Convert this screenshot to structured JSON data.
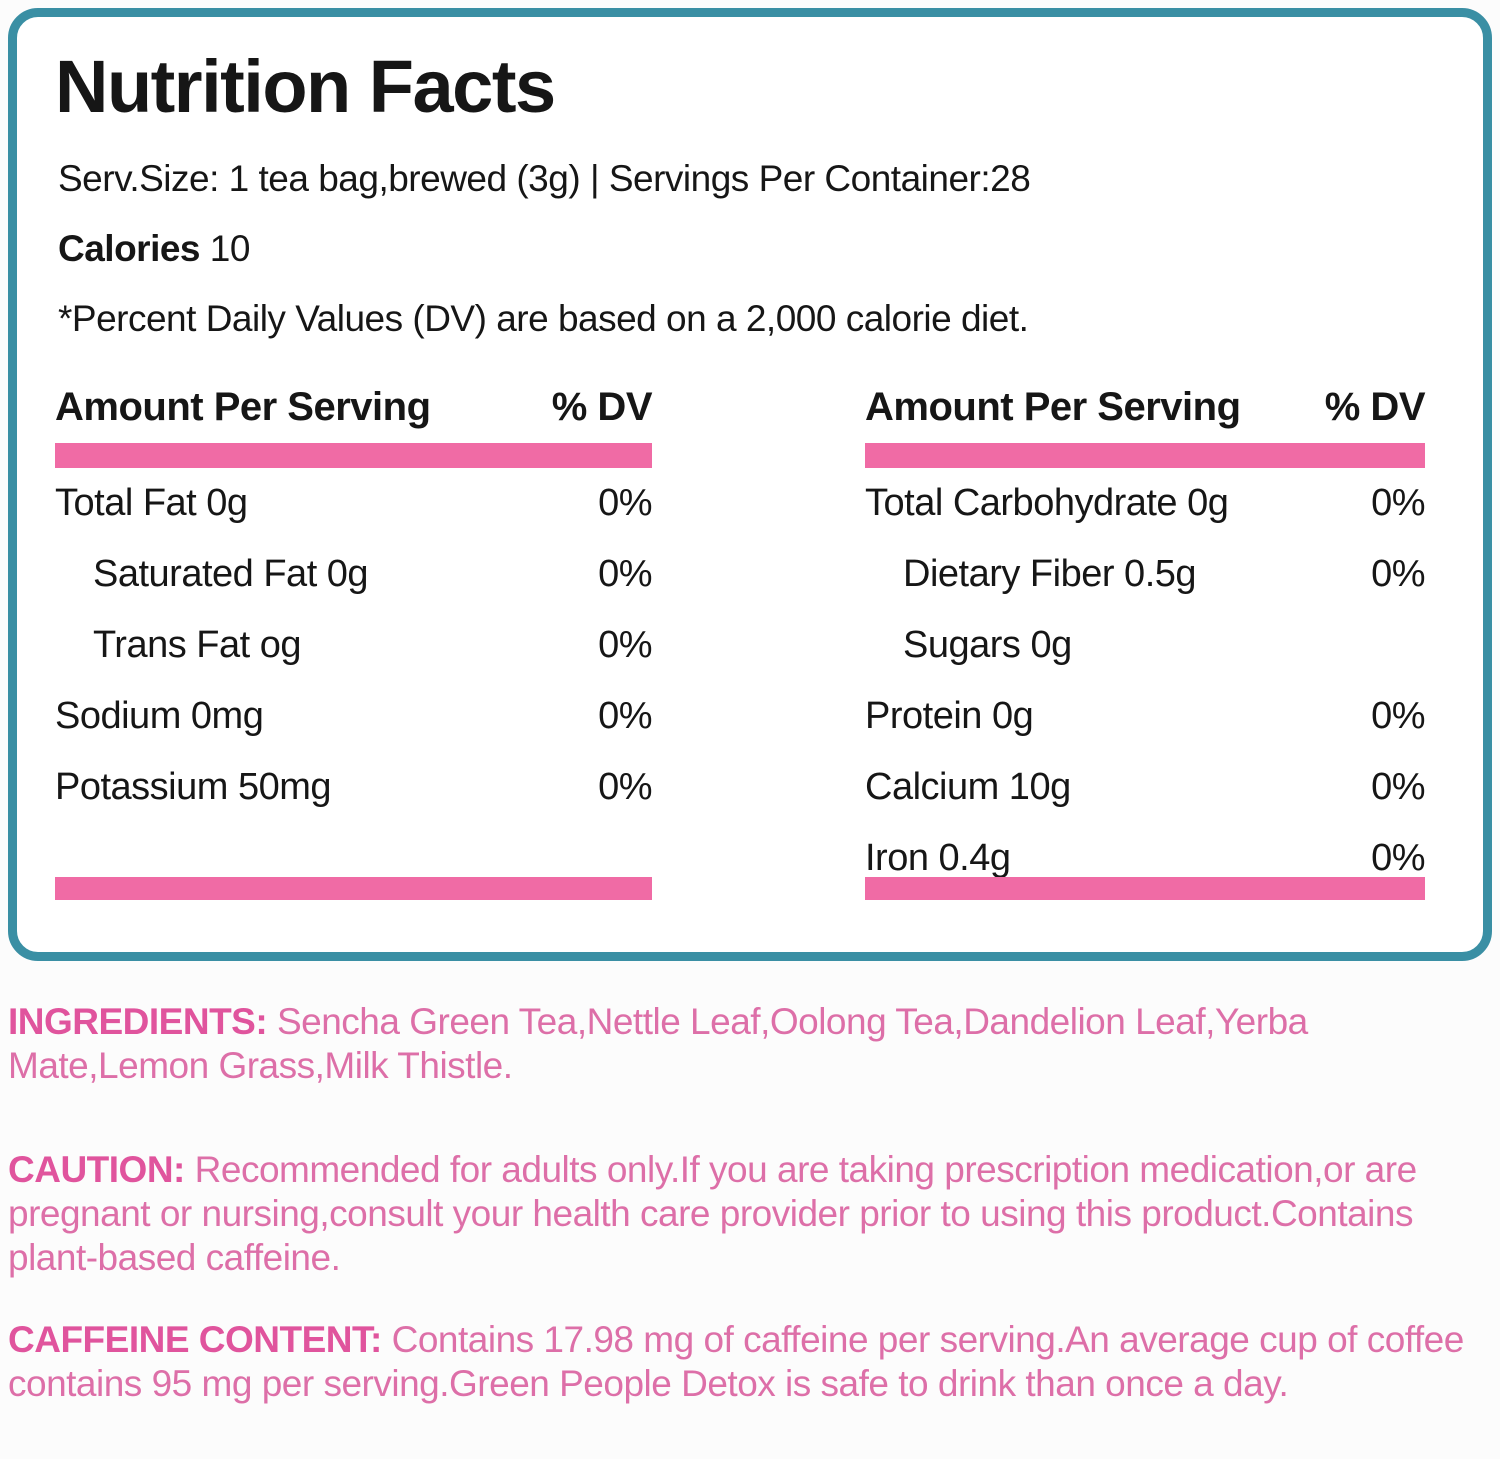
{
  "label": {
    "title": "Nutrition Facts",
    "serving_line": "Serv.Size: 1 tea bag,brewed (3g) | Servings Per Container:28",
    "calories_label": "Calories",
    "calories_value": "10",
    "dv_note": "*Percent Daily Values (DV) are based on a 2,000 calorie diet.",
    "columns": [
      {
        "header_amount": "Amount Per Serving",
        "header_dv": "% DV",
        "rows": [
          {
            "label": "Total Fat 0g",
            "dv": "0%"
          },
          {
            "label": "Saturated Fat 0g",
            "dv": "0%"
          },
          {
            "label": "Trans Fat og",
            "dv": "0%"
          },
          {
            "label": "Sodium 0mg",
            "dv": "0%"
          },
          {
            "label": "Potassium 50mg",
            "dv": "0%"
          }
        ]
      },
      {
        "header_amount": "Amount Per Serving",
        "header_dv": "% DV",
        "rows": [
          {
            "label": "Total Carbohydrate 0g",
            "dv": "0%"
          },
          {
            "label": "Dietary Fiber 0.5g",
            "dv": "0%"
          },
          {
            "label": "Sugars 0g",
            "dv": ""
          },
          {
            "label": "Protein 0g",
            "dv": "0%"
          },
          {
            "label": "Calcium 10g",
            "dv": "0%"
          },
          {
            "label": "Iron 0.4g",
            "dv": "0%"
          }
        ]
      }
    ]
  },
  "sections": [
    {
      "heading": "INGREDIENTS:",
      "text": "Sencha Green Tea,Nettle Leaf,Oolong Tea,Dandelion Leaf,Yerba Mate,Lemon Grass,Milk Thistle."
    },
    {
      "heading": "CAUTION:",
      "text": "Recommended for adults only.If you are taking prescription medication,or are pregnant or nursing,consult your health care provider prior to using this product.Contains plant-based caffeine."
    },
    {
      "heading": "CAFFEINE CONTENT:",
      "text": "Contains 17.98 mg of caffeine per serving.An average cup of coffee contains 95 mg per serving.Green People Detox is safe to drink than once a day."
    }
  ],
  "colors": {
    "teal_border": "#3a8fa4",
    "pink_bar": "#f06ba5",
    "pink_heading": "#e0549d",
    "pink_text": "#dd6fa8"
  }
}
